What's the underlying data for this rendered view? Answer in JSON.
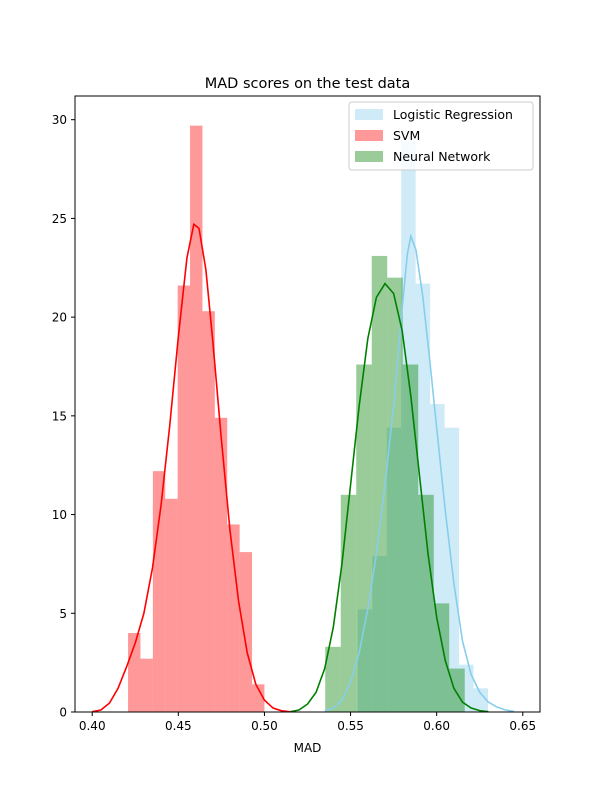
{
  "chart_data": {
    "type": "histogram",
    "title": "MAD scores on the test data",
    "xlabel": "MAD",
    "ylabel": "",
    "xlim": [
      0.39,
      0.66
    ],
    "ylim": [
      0,
      31.2
    ],
    "x_ticks": [
      0.4,
      0.45,
      0.5,
      0.55,
      0.6,
      0.65
    ],
    "x_tick_labels": [
      "0.40",
      "0.45",
      "0.50",
      "0.55",
      "0.60",
      "0.65"
    ],
    "y_ticks": [
      0,
      5,
      10,
      15,
      20,
      25,
      30
    ],
    "y_tick_labels": [
      "0",
      "5",
      "10",
      "15",
      "20",
      "25",
      "30"
    ],
    "grid": false,
    "legend_position": "top-right",
    "series": [
      {
        "name": "Logistic Regression",
        "color": "#87ceeb",
        "bins": [
          {
            "x0": 0.5542,
            "x1": 0.5626,
            "y": 5.2
          },
          {
            "x0": 0.5626,
            "x1": 0.571,
            "y": 7.9
          },
          {
            "x0": 0.571,
            "x1": 0.5794,
            "y": 14.4
          },
          {
            "x0": 0.5794,
            "x1": 0.5878,
            "y": 28.9
          },
          {
            "x0": 0.5878,
            "x1": 0.5962,
            "y": 21.7
          },
          {
            "x0": 0.5962,
            "x1": 0.6046,
            "y": 15.6
          },
          {
            "x0": 0.6046,
            "x1": 0.613,
            "y": 14.4
          },
          {
            "x0": 0.613,
            "x1": 0.6214,
            "y": 2.4
          },
          {
            "x0": 0.6214,
            "x1": 0.6298,
            "y": 1.2
          }
        ],
        "kde": [
          [
            0.535,
            0.05
          ],
          [
            0.54,
            0.2
          ],
          [
            0.545,
            0.6
          ],
          [
            0.55,
            1.5
          ],
          [
            0.555,
            3.0
          ],
          [
            0.56,
            5.2
          ],
          [
            0.565,
            8.0
          ],
          [
            0.57,
            11.5
          ],
          [
            0.575,
            15.5
          ],
          [
            0.58,
            20.5
          ],
          [
            0.583,
            23.2
          ],
          [
            0.585,
            24.1
          ],
          [
            0.588,
            23.4
          ],
          [
            0.592,
            21.0
          ],
          [
            0.596,
            17.8
          ],
          [
            0.6,
            14.4
          ],
          [
            0.605,
            10.2
          ],
          [
            0.61,
            6.5
          ],
          [
            0.615,
            3.6
          ],
          [
            0.62,
            1.9
          ],
          [
            0.625,
            1.0
          ],
          [
            0.63,
            0.5
          ],
          [
            0.635,
            0.25
          ],
          [
            0.64,
            0.1
          ],
          [
            0.645,
            0.03
          ]
        ]
      },
      {
        "name": "SVM",
        "color": "#ff0000",
        "bins": [
          {
            "x0": 0.4208,
            "x1": 0.428,
            "y": 4.0
          },
          {
            "x0": 0.428,
            "x1": 0.4352,
            "y": 2.7
          },
          {
            "x0": 0.4352,
            "x1": 0.4424,
            "y": 12.2
          },
          {
            "x0": 0.4424,
            "x1": 0.4496,
            "y": 10.8
          },
          {
            "x0": 0.4496,
            "x1": 0.4568,
            "y": 21.6
          },
          {
            "x0": 0.4568,
            "x1": 0.464,
            "y": 29.7
          },
          {
            "x0": 0.464,
            "x1": 0.4712,
            "y": 20.3
          },
          {
            "x0": 0.4712,
            "x1": 0.4784,
            "y": 14.9
          },
          {
            "x0": 0.4784,
            "x1": 0.4856,
            "y": 9.5
          },
          {
            "x0": 0.4856,
            "x1": 0.4928,
            "y": 8.1
          },
          {
            "x0": 0.4928,
            "x1": 0.5,
            "y": 1.4
          }
        ],
        "kde": [
          [
            0.4,
            0.02
          ],
          [
            0.405,
            0.1
          ],
          [
            0.41,
            0.45
          ],
          [
            0.415,
            1.2
          ],
          [
            0.42,
            2.3
          ],
          [
            0.425,
            3.5
          ],
          [
            0.43,
            5.0
          ],
          [
            0.435,
            7.3
          ],
          [
            0.44,
            10.5
          ],
          [
            0.445,
            14.5
          ],
          [
            0.45,
            19.0
          ],
          [
            0.455,
            23.0
          ],
          [
            0.459,
            24.7
          ],
          [
            0.462,
            24.5
          ],
          [
            0.466,
            22.4
          ],
          [
            0.47,
            18.8
          ],
          [
            0.475,
            13.8
          ],
          [
            0.48,
            9.2
          ],
          [
            0.485,
            5.6
          ],
          [
            0.49,
            3.0
          ],
          [
            0.495,
            1.4
          ],
          [
            0.5,
            0.6
          ],
          [
            0.505,
            0.2
          ],
          [
            0.51,
            0.06
          ],
          [
            0.515,
            0.01
          ]
        ]
      },
      {
        "name": "Neural Network",
        "color": "#008000",
        "bins": [
          {
            "x0": 0.5353,
            "x1": 0.5443,
            "y": 3.3
          },
          {
            "x0": 0.5443,
            "x1": 0.5533,
            "y": 11.0
          },
          {
            "x0": 0.5533,
            "x1": 0.5623,
            "y": 17.6
          },
          {
            "x0": 0.5623,
            "x1": 0.5713,
            "y": 23.1
          },
          {
            "x0": 0.5713,
            "x1": 0.5803,
            "y": 22.0
          },
          {
            "x0": 0.5803,
            "x1": 0.5893,
            "y": 17.6
          },
          {
            "x0": 0.5893,
            "x1": 0.5983,
            "y": 11.0
          },
          {
            "x0": 0.5983,
            "x1": 0.6073,
            "y": 5.5
          },
          {
            "x0": 0.6073,
            "x1": 0.6163,
            "y": 2.2
          }
        ],
        "kde": [
          [
            0.515,
            0.02
          ],
          [
            0.52,
            0.1
          ],
          [
            0.525,
            0.4
          ],
          [
            0.53,
            1.0
          ],
          [
            0.535,
            2.2
          ],
          [
            0.54,
            4.3
          ],
          [
            0.545,
            7.5
          ],
          [
            0.55,
            11.5
          ],
          [
            0.555,
            15.5
          ],
          [
            0.56,
            18.9
          ],
          [
            0.565,
            21.0
          ],
          [
            0.57,
            21.7
          ],
          [
            0.575,
            21.2
          ],
          [
            0.58,
            19.3
          ],
          [
            0.585,
            16.0
          ],
          [
            0.59,
            12.0
          ],
          [
            0.595,
            8.0
          ],
          [
            0.6,
            4.8
          ],
          [
            0.605,
            2.6
          ],
          [
            0.61,
            1.2
          ],
          [
            0.615,
            0.5
          ],
          [
            0.62,
            0.2
          ],
          [
            0.625,
            0.07
          ],
          [
            0.63,
            0.02
          ]
        ]
      }
    ]
  }
}
